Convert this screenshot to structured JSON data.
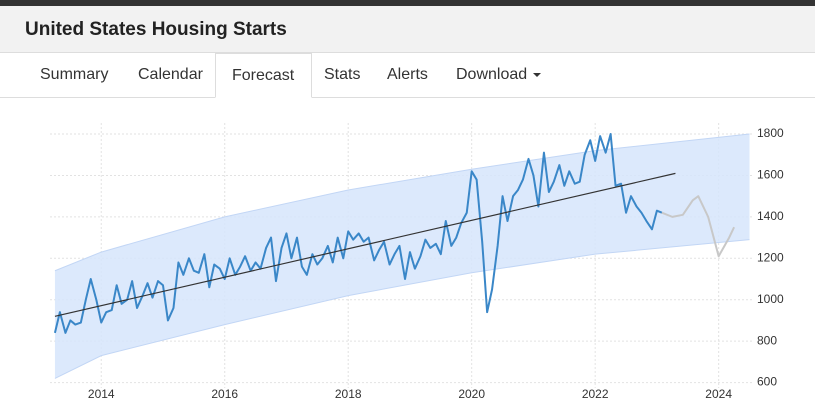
{
  "header": {
    "title": "United States Housing Starts"
  },
  "tabs": [
    "Summary",
    "Calendar",
    "Forecast",
    "Stats",
    "Alerts",
    "Download"
  ],
  "chart_data": {
    "type": "line",
    "xlim": [
      2013.17,
      2024.54
    ],
    "xticks": [
      2014,
      2016,
      2018,
      2020,
      2022,
      2024
    ],
    "ylim": [
      540,
      1916
    ],
    "yticks": [
      600,
      800,
      1000,
      1200,
      1400,
      1600,
      1800
    ],
    "grid": true,
    "band": {
      "color": "#d6e5fb",
      "x": [
        2013.25,
        2014,
        2016,
        2018,
        2020,
        2022,
        2024.5
      ],
      "upper": [
        1140,
        1230,
        1400,
        1530,
        1630,
        1720,
        1800
      ],
      "lower": [
        620,
        730,
        880,
        1020,
        1130,
        1220,
        1290
      ]
    },
    "series": [
      {
        "color": "#3a87c8",
        "x": [
          2013.25,
          2013.33,
          2013.42,
          2013.5,
          2013.58,
          2013.67,
          2013.75,
          2013.83,
          2013.92,
          2014.0,
          2014.08,
          2014.17,
          2014.25,
          2014.33,
          2014.42,
          2014.5,
          2014.58,
          2014.67,
          2014.75,
          2014.83,
          2014.92,
          2015.0,
          2015.08,
          2015.17,
          2015.25,
          2015.33,
          2015.42,
          2015.5,
          2015.58,
          2015.67,
          2015.75,
          2015.83,
          2015.92,
          2016.0,
          2016.08,
          2016.17,
          2016.25,
          2016.33,
          2016.42,
          2016.5,
          2016.58,
          2016.67,
          2016.75,
          2016.83,
          2016.92,
          2017.0,
          2017.08,
          2017.17,
          2017.25,
          2017.33,
          2017.42,
          2017.5,
          2017.58,
          2017.67,
          2017.75,
          2017.83,
          2017.92,
          2018.0,
          2018.08,
          2018.17,
          2018.25,
          2018.33,
          2018.42,
          2018.5,
          2018.58,
          2018.67,
          2018.75,
          2018.83,
          2018.92,
          2019.0,
          2019.08,
          2019.17,
          2019.25,
          2019.33,
          2019.42,
          2019.5,
          2019.58,
          2019.67,
          2019.75,
          2019.83,
          2019.92,
          2020.0,
          2020.08,
          2020.17,
          2020.25,
          2020.33,
          2020.42,
          2020.5,
          2020.58,
          2020.67,
          2020.75,
          2020.83,
          2020.92,
          2021.0,
          2021.08,
          2021.17,
          2021.25,
          2021.33,
          2021.42,
          2021.5,
          2021.58,
          2021.67,
          2021.75,
          2021.83,
          2021.92,
          2022.0,
          2022.08,
          2022.17,
          2022.25,
          2022.33,
          2022.42,
          2022.5,
          2022.58,
          2022.67,
          2022.75,
          2022.83,
          2022.92,
          2023.0,
          2023.08
        ],
        "values": [
          840,
          940,
          840,
          900,
          880,
          890,
          1000,
          1100,
          1000,
          890,
          940,
          950,
          1070,
          980,
          1000,
          1090,
          960,
          1020,
          1080,
          1010,
          1090,
          1070,
          900,
          960,
          1180,
          1120,
          1200,
          1140,
          1130,
          1220,
          1060,
          1170,
          1150,
          1100,
          1200,
          1120,
          1160,
          1210,
          1140,
          1180,
          1150,
          1250,
          1300,
          1090,
          1250,
          1320,
          1200,
          1300,
          1160,
          1120,
          1220,
          1170,
          1200,
          1260,
          1180,
          1300,
          1200,
          1330,
          1290,
          1320,
          1280,
          1300,
          1190,
          1240,
          1280,
          1170,
          1220,
          1260,
          1100,
          1230,
          1150,
          1210,
          1290,
          1250,
          1270,
          1220,
          1380,
          1260,
          1300,
          1370,
          1420,
          1620,
          1580,
          1280,
          940,
          1050,
          1260,
          1500,
          1380,
          1500,
          1530,
          1580,
          1680,
          1600,
          1450,
          1710,
          1520,
          1570,
          1650,
          1550,
          1620,
          1560,
          1570,
          1700,
          1770,
          1670,
          1790,
          1710,
          1800,
          1550,
          1560,
          1420,
          1500,
          1450,
          1420,
          1380,
          1340,
          1430,
          1420
        ]
      },
      {
        "color": "#c8c8c8",
        "x": [
          2023.08,
          2023.25,
          2023.42,
          2023.58,
          2023.67,
          2023.83,
          2024.0,
          2024.17,
          2024.25
        ],
        "values": [
          1420,
          1400,
          1410,
          1480,
          1500,
          1400,
          1210,
          1300,
          1350
        ]
      },
      {
        "color": "#333333",
        "x": [
          2013.25,
          2023.3
        ],
        "values": [
          920,
          1610
        ]
      }
    ]
  }
}
